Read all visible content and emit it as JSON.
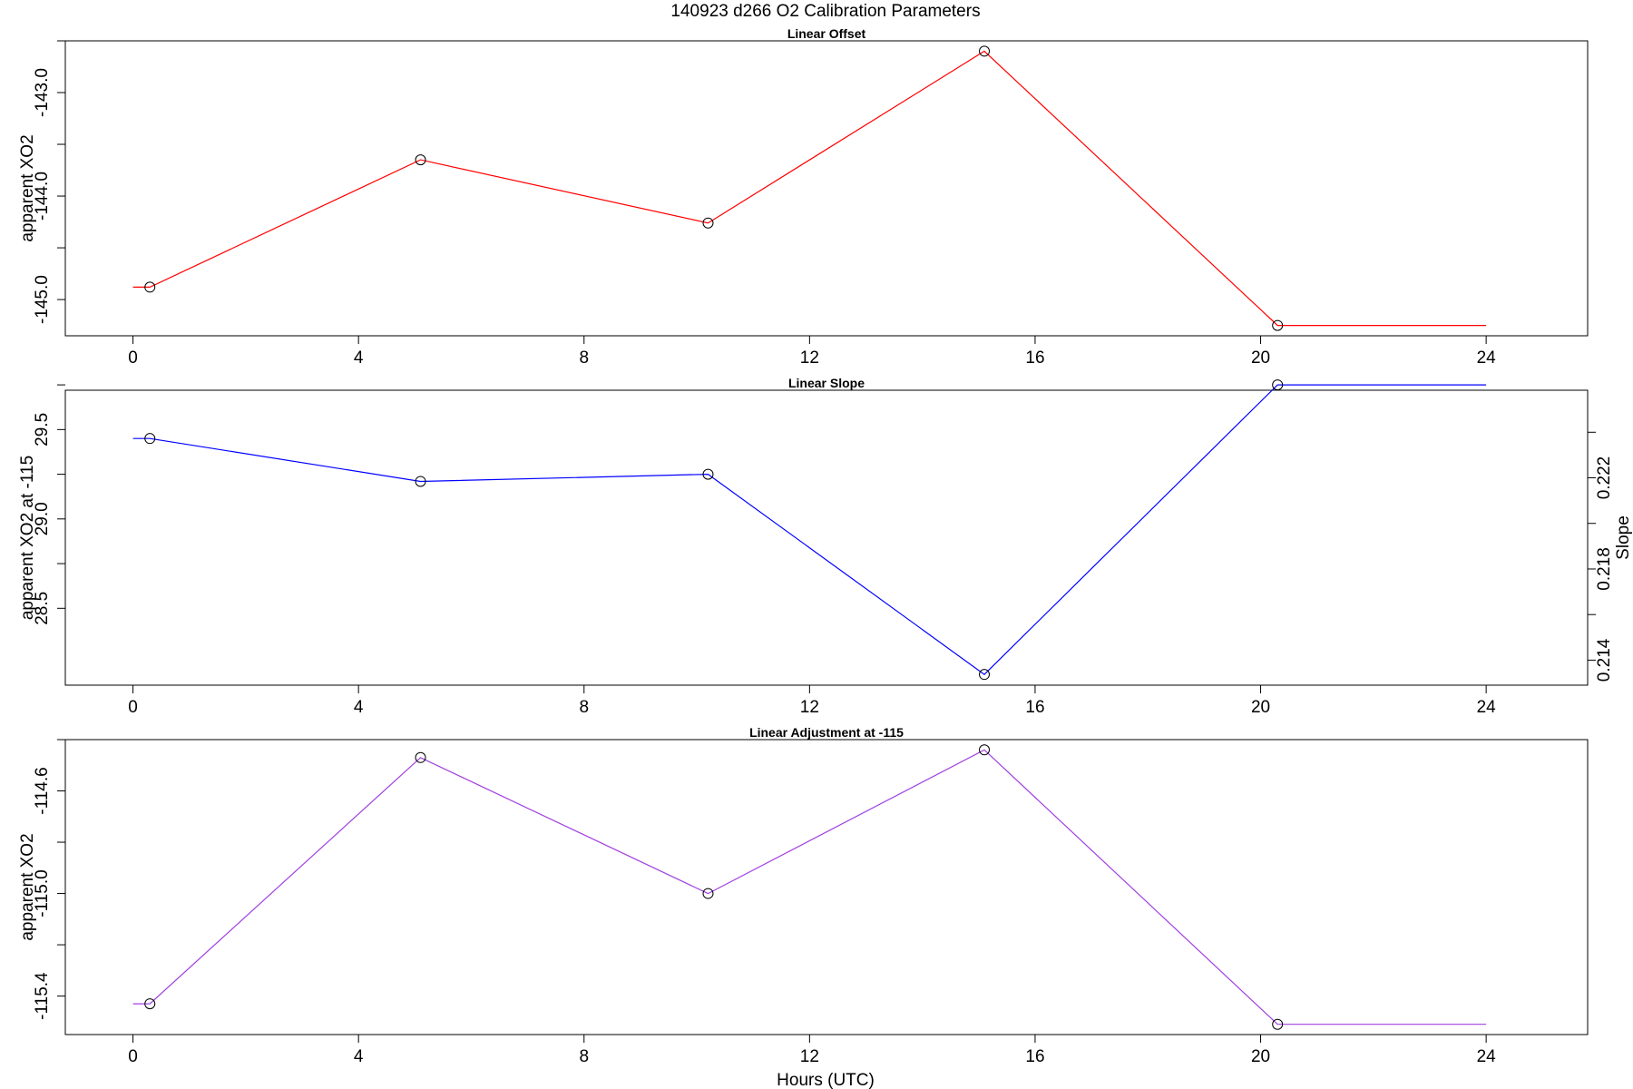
{
  "title": "140923   d266   O2 Calibration Parameters",
  "xlabel": "Hours (UTC)",
  "chart_data": [
    {
      "type": "line",
      "title": "Linear Offset",
      "ylabel": "apparent XO2",
      "xlim": [
        -1.2,
        25.8
      ],
      "ylim": [
        -145.35,
        -142.5
      ],
      "xticks": [
        0,
        4,
        8,
        12,
        16,
        20,
        24
      ],
      "yticks": [
        -145.5,
        -145.0,
        -144.5,
        -144.0,
        -143.5,
        -143.0,
        -142.5
      ],
      "ytick_labels": [
        "",
        "-145.0",
        "",
        "-144.0",
        "",
        "-143.0",
        ""
      ],
      "color": "#ff0000",
      "line_x": [
        0,
        0.3,
        5.1,
        10.2,
        15.1,
        20.3,
        24
      ],
      "line_y": [
        -144.88,
        -144.88,
        -143.65,
        -144.26,
        -142.6,
        -145.25,
        -145.25
      ],
      "points_x": [
        0.3,
        5.1,
        10.2,
        15.1,
        20.3
      ],
      "points_y": [
        -144.88,
        -143.65,
        -144.26,
        -142.6,
        -145.25
      ]
    },
    {
      "type": "line",
      "title": "Linear Slope",
      "ylabel": "apparent XO2 at -115",
      "ylabel_right": "Slope",
      "xlim": [
        -1.2,
        25.8
      ],
      "ylim": [
        28.07,
        29.72
      ],
      "xticks": [
        0,
        4,
        8,
        12,
        16,
        20,
        24
      ],
      "yticks": [
        28.5,
        28.75,
        29.0,
        29.25,
        29.5,
        29.75
      ],
      "ytick_labels": [
        "28.5",
        "",
        "29.0",
        "",
        "29.5",
        ""
      ],
      "yticks_right_pos": [
        28.21,
        28.465,
        28.72,
        28.975,
        29.23,
        29.485,
        29.74
      ],
      "ytick_labels_right": [
        "0.214",
        "",
        "0.218",
        "",
        "0.222",
        "",
        ""
      ],
      "color": "#0000ff",
      "line_x": [
        0,
        0.3,
        5.1,
        10.2,
        15.1,
        20.3,
        24
      ],
      "line_y": [
        29.45,
        29.45,
        29.21,
        29.25,
        28.13,
        29.75,
        29.75
      ],
      "points_x": [
        0.3,
        5.1,
        10.2,
        15.1,
        20.3
      ],
      "points_y": [
        29.45,
        29.21,
        29.25,
        28.13,
        29.75
      ]
    },
    {
      "type": "line",
      "title": "Linear Adjustment at -115",
      "ylabel": "apparent XO2",
      "xlim": [
        -1.2,
        25.8
      ],
      "ylim": [
        -115.55,
        -114.4
      ],
      "xticks": [
        0,
        4,
        8,
        12,
        16,
        20,
        24
      ],
      "yticks": [
        -115.4,
        -115.2,
        -115.0,
        -114.8,
        -114.6,
        -114.4
      ],
      "ytick_labels": [
        "-115.4",
        "",
        "-115.0",
        "",
        "-114.6",
        ""
      ],
      "color": "#a040e0",
      "line_x": [
        0,
        0.3,
        5.1,
        10.2,
        15.1,
        20.3,
        24
      ],
      "line_y": [
        -115.43,
        -115.43,
        -114.47,
        -115.0,
        -114.44,
        -115.51,
        -115.51
      ],
      "points_x": [
        0.3,
        5.1,
        10.2,
        15.1,
        20.3
      ],
      "points_y": [
        -115.43,
        -114.47,
        -115.0,
        -114.44,
        -115.51
      ]
    }
  ]
}
